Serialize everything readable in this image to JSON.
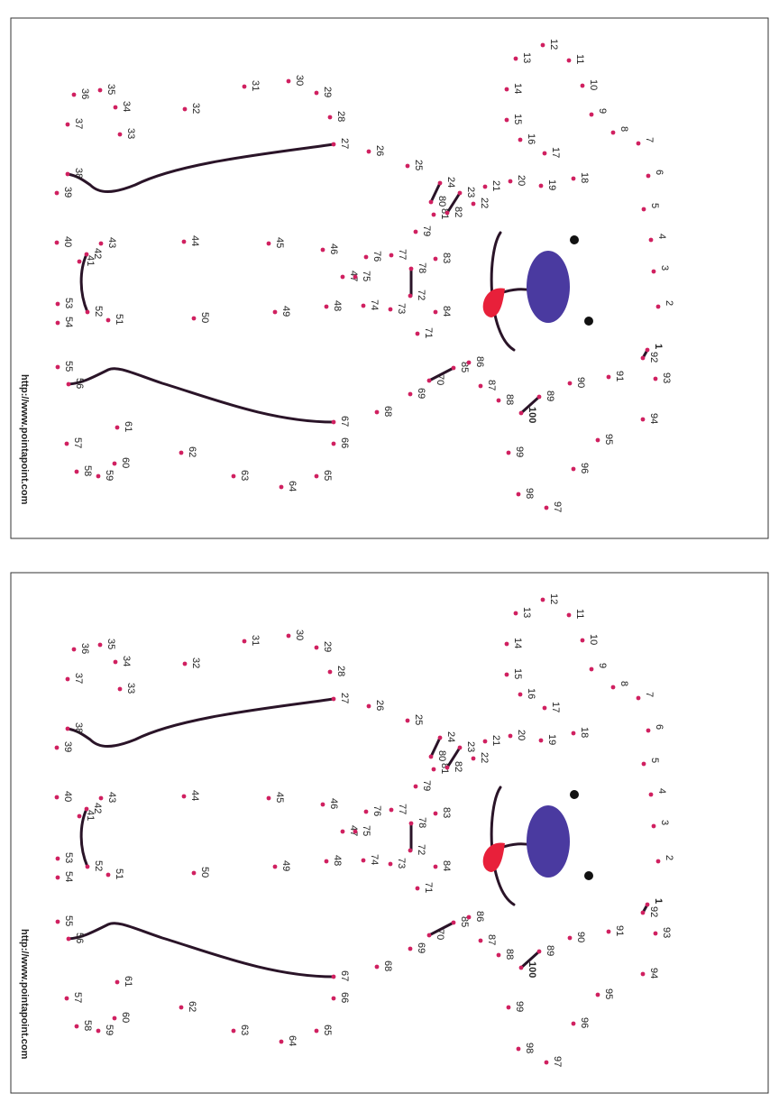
{
  "dots": [
    1,
    2,
    3,
    4,
    5,
    6,
    7,
    8,
    9,
    10,
    11,
    12,
    13,
    14,
    15,
    16,
    17,
    18,
    19,
    20,
    21,
    22,
    23,
    24,
    25,
    26,
    27,
    28,
    29,
    30,
    31,
    32,
    33,
    34,
    35,
    36,
    37,
    38,
    39,
    40,
    41,
    42,
    43,
    44,
    45,
    46,
    47,
    48,
    49,
    50,
    51,
    52,
    53,
    54,
    55,
    56,
    57,
    58,
    59,
    60,
    61,
    62,
    63,
    64,
    65,
    66,
    67,
    68,
    69,
    70,
    71,
    72,
    73,
    74,
    75,
    76,
    77,
    78,
    79,
    80,
    81,
    82,
    83,
    84,
    85,
    86,
    87,
    88,
    89,
    90,
    91,
    92,
    93,
    94,
    95,
    96,
    97,
    98,
    99,
    100
  ],
  "footer": {
    "url": "http://www.pointapoint.com"
  }
}
